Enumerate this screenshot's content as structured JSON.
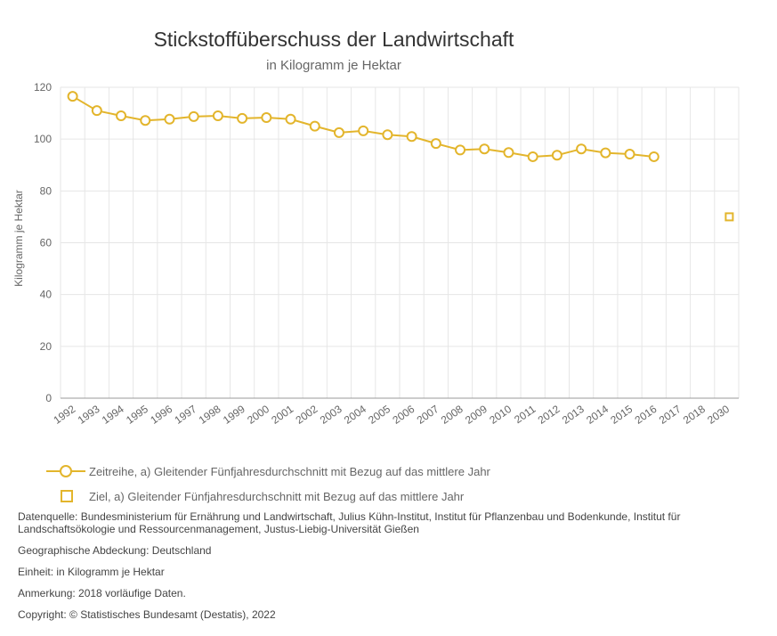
{
  "chart_data": {
    "type": "line",
    "title": "Stickstoffüberschuss der Landwirtschaft",
    "subtitle": "in Kilogramm je Hektar",
    "ylabel": "Kilogramm je Hektar",
    "xlabel": "",
    "ylim": [
      0,
      120
    ],
    "yticks": [
      0,
      20,
      40,
      60,
      80,
      100,
      120
    ],
    "categories": [
      "1992",
      "1993",
      "1994",
      "1995",
      "1996",
      "1997",
      "1998",
      "1999",
      "2000",
      "2001",
      "2002",
      "2003",
      "2004",
      "2005",
      "2006",
      "2007",
      "2008",
      "2009",
      "2010",
      "2011",
      "2012",
      "2013",
      "2014",
      "2015",
      "2016",
      "2017",
      "2018",
      "2030"
    ],
    "series": [
      {
        "name": "Zeitreihe, a) Gleitender Fünfjahresdurchschnitt mit Bezug auf das mittlere Jahr",
        "marker": "circle",
        "values": [
          116.5,
          111,
          109,
          107.2,
          107.7,
          108.7,
          109,
          108,
          108.3,
          107.7,
          105,
          102.5,
          103.2,
          101.7,
          101,
          98.3,
          95.8,
          96.2,
          94.8,
          93.2,
          93.8,
          96.2,
          94.7,
          94.2,
          93.2,
          null,
          null,
          null
        ]
      },
      {
        "name": "Ziel, a) Gleitender Fünfjahresdurchschnitt mit Bezug auf das mittlere Jahr",
        "marker": "square",
        "values": [
          null,
          null,
          null,
          null,
          null,
          null,
          null,
          null,
          null,
          null,
          null,
          null,
          null,
          null,
          null,
          null,
          null,
          null,
          null,
          null,
          null,
          null,
          null,
          null,
          null,
          null,
          null,
          70
        ]
      }
    ],
    "grid": true,
    "legend_position": "bottom-left"
  },
  "colors": {
    "series": "#e3b52c",
    "grid": "#e6e6e6",
    "axis": "#999999"
  },
  "notes": {
    "source": "Datenquelle: Bundesministerium für Ernährung und Landwirtschaft, Julius Kühn-Institut, Institut für Pflanzenbau und Bodenkunde, Institut für Landschaftsökologie und Ressourcenmanagement, Justus-Liebig-Universität Gießen",
    "coverage": "Geographische Abdeckung: Deutschland",
    "unit": "Einheit: in Kilogramm je Hektar",
    "remark": "Anmerkung: 2018 vorläufige Daten.",
    "copyright": "Copyright: © Statistisches Bundesamt (Destatis), 2022"
  }
}
